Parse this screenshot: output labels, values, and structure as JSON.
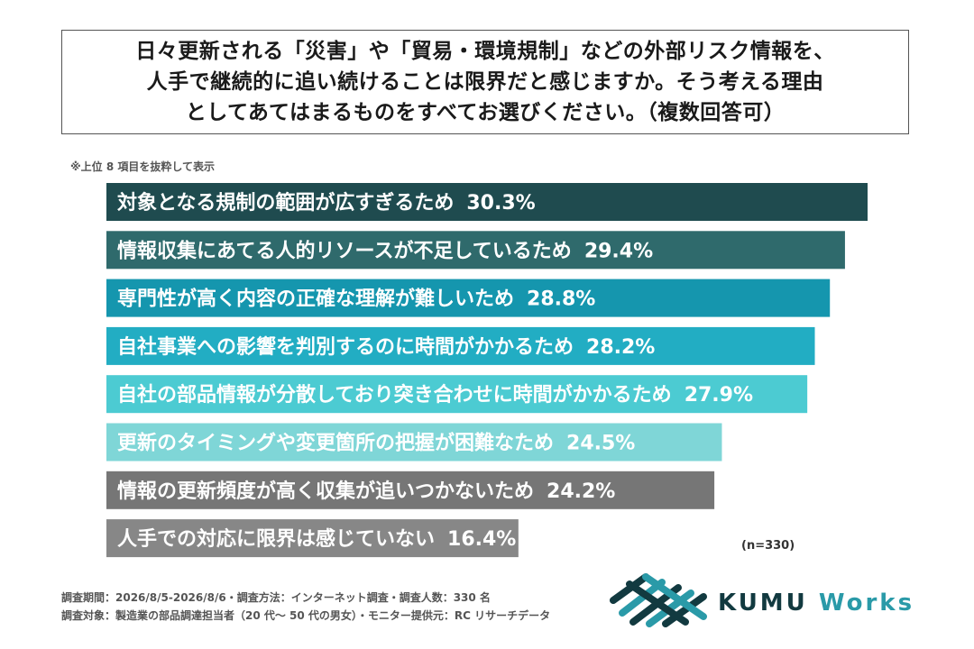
{
  "question": {
    "lines": [
      "日々更新される「災害」や「貿易・環境規制」などの外部リスク情報を、",
      "人手で継続的に追い続けることは限界だと感じますか。そう考える理由",
      "としてあてはまるものをすべてお選びください。（複数回答可）"
    ]
  },
  "note": "※上位 8 項目を抜粋して表示",
  "chart_data": {
    "type": "bar",
    "orientation": "horizontal",
    "unit": "%",
    "categories": [
      "対象となる規制の範囲が広すぎるため",
      "情報収集にあてる人的リソースが不足しているため",
      "専門性が高く内容の正確な理解が難しいため",
      "自社事業への影響を判別するのに時間がかかるため",
      "自社の部品情報が分散しており突き合わせに時間がかかるため",
      "更新のタイミングや変更箇所の把握が困難なため",
      "情報の更新頻度が高く収集が追いつかないため",
      "人手での対応に限界は感じていない"
    ],
    "values": [
      30.3,
      29.4,
      28.8,
      28.2,
      27.9,
      24.5,
      24.2,
      16.4
    ],
    "value_labels": [
      "30.3%",
      "29.4%",
      "28.8%",
      "28.2%",
      "27.9%",
      "24.5%",
      "24.2%",
      "16.4%"
    ],
    "colors": [
      "#1f4b4f",
      "#2f6a6c",
      "#1596ae",
      "#22adc3",
      "#4ccbd2",
      "#7fd6d7",
      "#767676",
      "#878787"
    ],
    "xlim": [
      0,
      30.3
    ],
    "grid": false,
    "legend": "none"
  },
  "sample_size": "(n=330)",
  "footer": {
    "period": "調査期間：2026/8/5-2026/8/6・調査方法：インターネット調査・調査人数：330 名",
    "target": "調査対象：製造業の部品調達担当者（20 代～ 50 代の男女）・モニター提供元：RC リサーチデータ"
  },
  "logo": {
    "brand_primary": "KUMU",
    "brand_secondary": "Works",
    "icon": "kumu-works-logo-icon",
    "colors": {
      "dark": "#123a40",
      "accent": "#2a9aa8"
    }
  }
}
